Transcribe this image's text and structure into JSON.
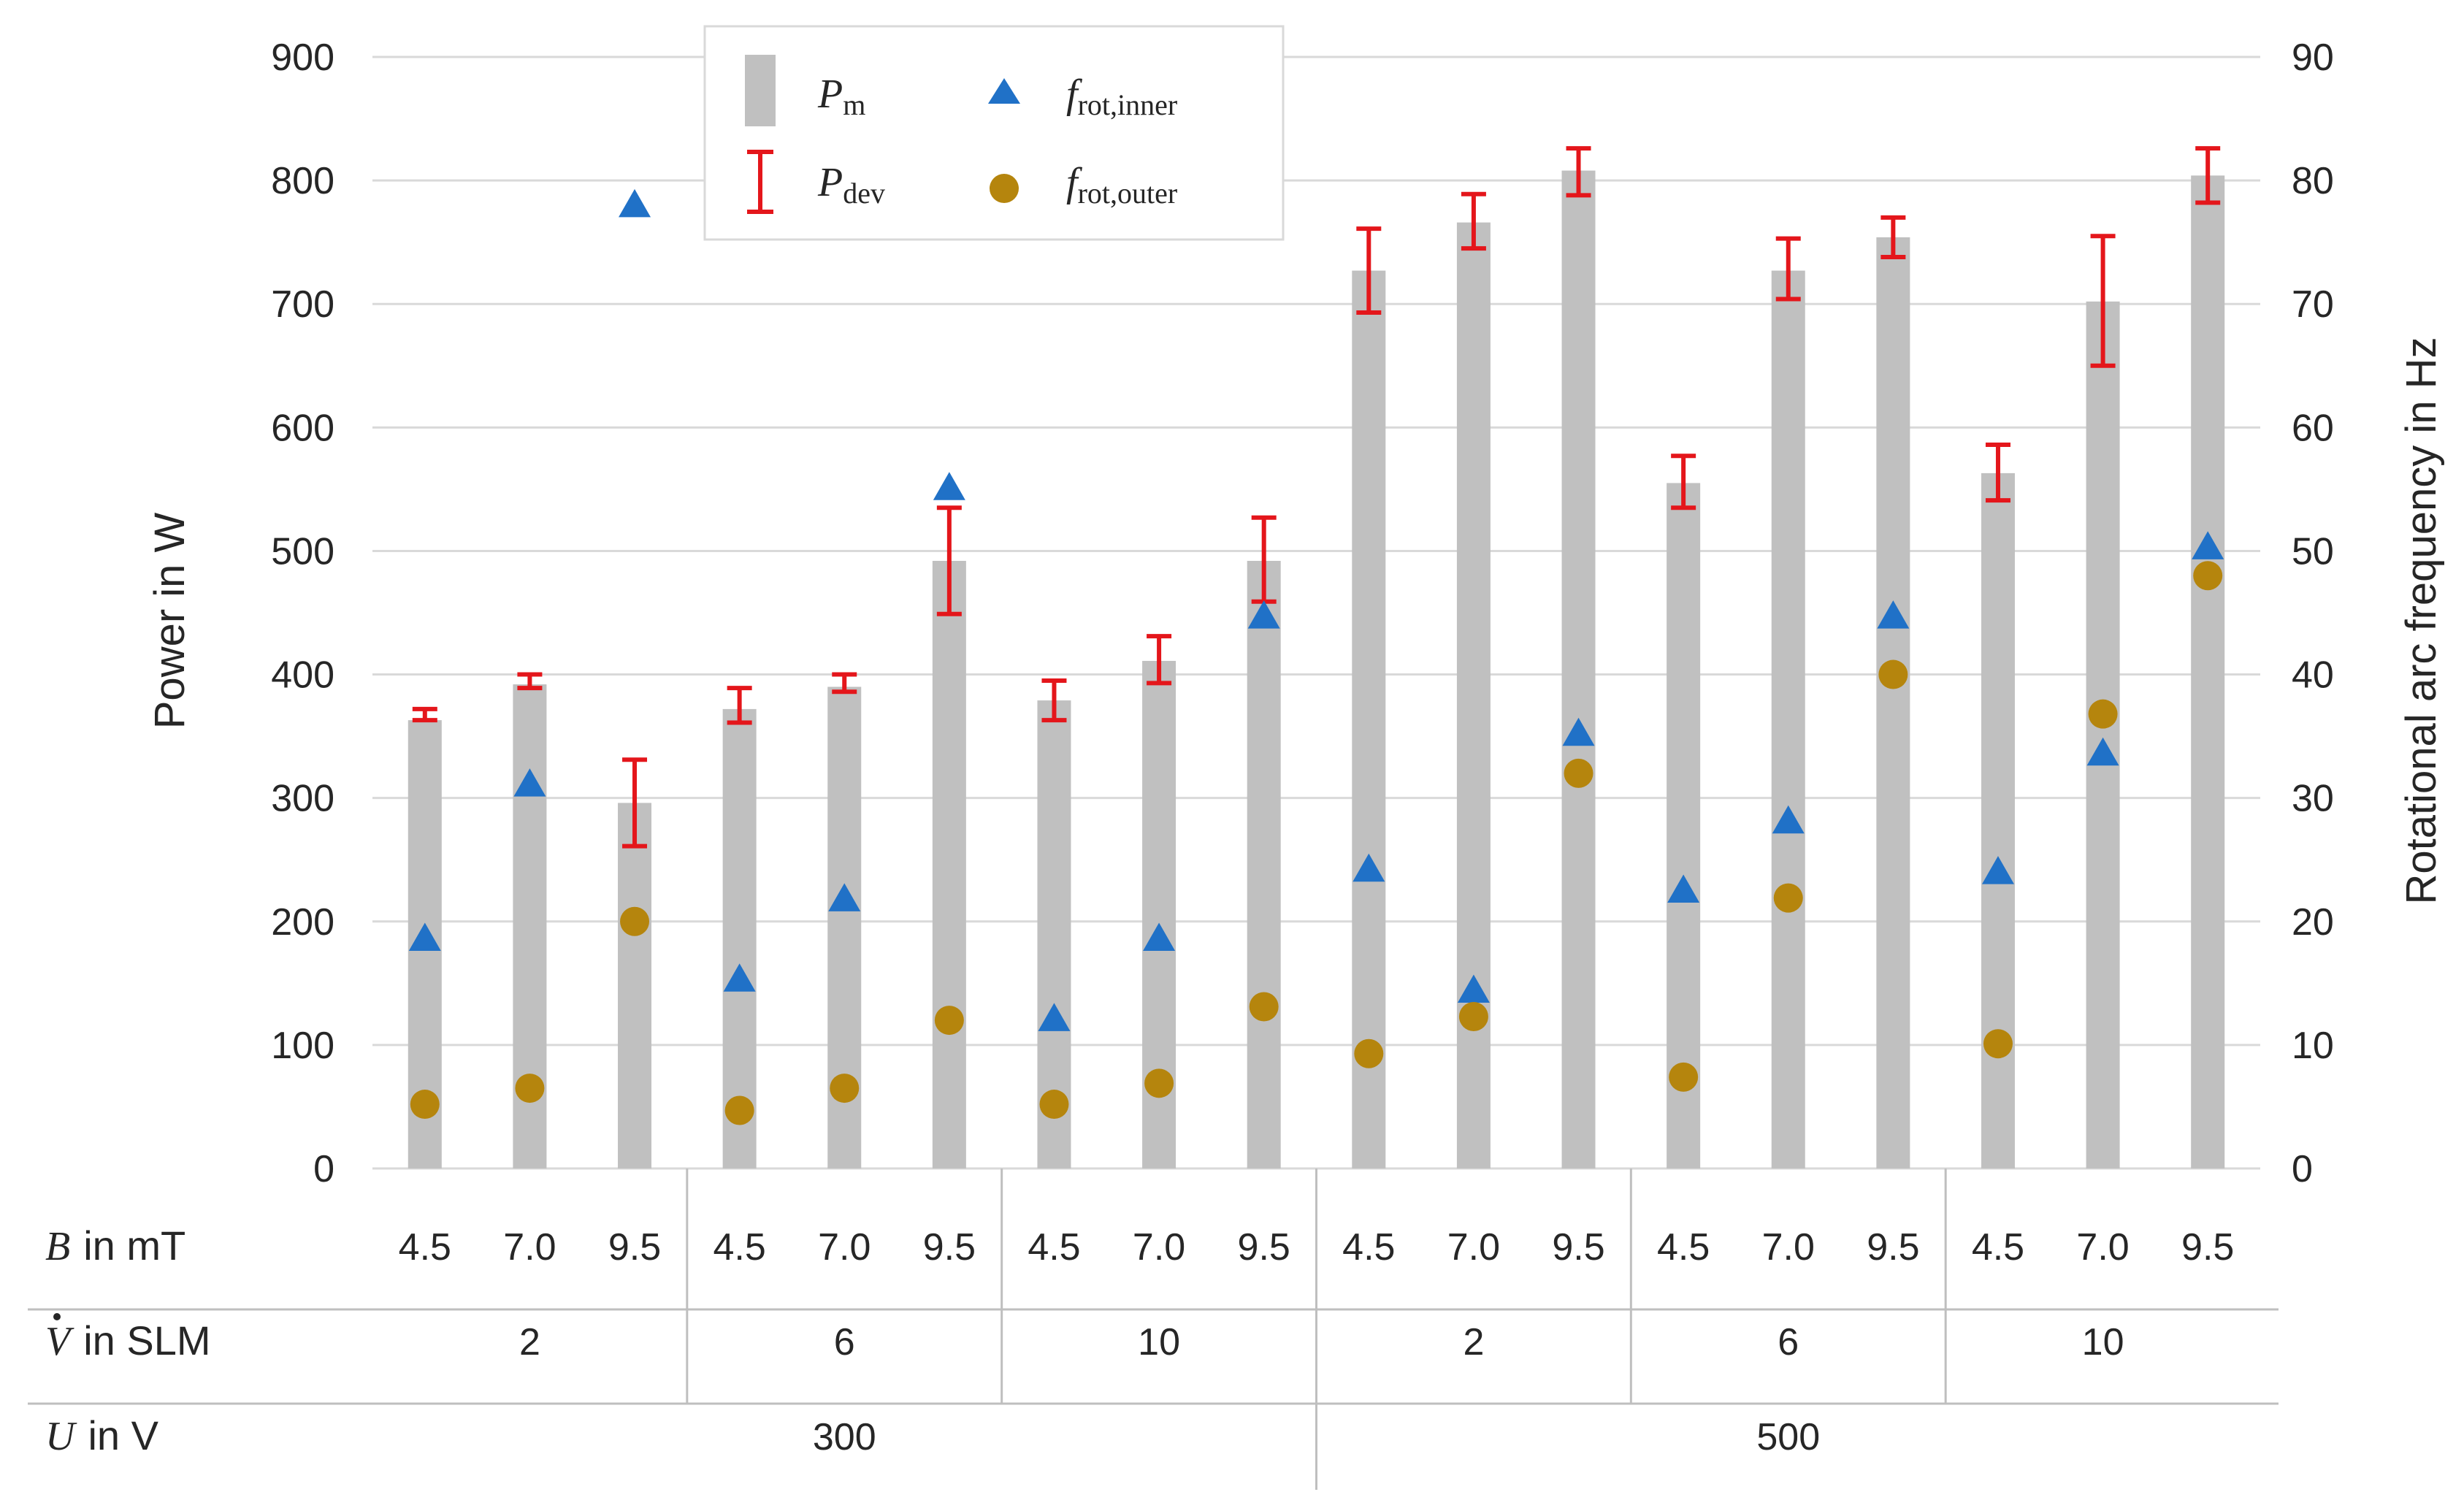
{
  "chart_data": {
    "type": "bar",
    "title": "",
    "ylabel": "Power in W",
    "y2label": "Rotational arc frequency in Hz",
    "ylim": [
      0,
      900
    ],
    "y2lim": [
      0,
      90
    ],
    "yticks": [
      "0",
      "100",
      "200",
      "300",
      "400",
      "500",
      "600",
      "700",
      "800",
      "900"
    ],
    "y2ticks": [
      "0",
      "10",
      "20",
      "30",
      "40",
      "50",
      "60",
      "70",
      "80",
      "90"
    ],
    "gridlines": true,
    "legend_position": "top-center",
    "legend": {
      "pm": {
        "main": "P",
        "sub": "m"
      },
      "pdev": {
        "main": "P",
        "sub": "dev"
      },
      "finner": {
        "main": "f",
        "sub": "rot,inner"
      },
      "fouter": {
        "main": "f",
        "sub": "rot,outer"
      }
    },
    "categories": [
      "4.5",
      "7.0",
      "9.5",
      "4.5",
      "7.0",
      "9.5",
      "4.5",
      "7.0",
      "9.5",
      "4.5",
      "7.0",
      "9.5",
      "4.5",
      "7.0",
      "9.5",
      "4.5",
      "7.0",
      "9.5"
    ],
    "series": [
      {
        "name": "P_m",
        "axis": "left",
        "kind": "bar",
        "values": [
          363,
          392,
          296,
          372,
          390,
          492,
          379,
          411,
          492,
          727,
          766,
          808,
          555,
          727,
          754,
          563,
          702,
          804
        ]
      },
      {
        "name": "P_dev_upper",
        "axis": "left",
        "kind": "errorbar",
        "values": [
          372,
          400,
          331,
          389,
          400,
          535,
          395,
          431,
          527,
          761,
          789,
          826,
          577,
          753,
          770,
          586,
          755,
          826
        ]
      },
      {
        "name": "P_dev_lower",
        "axis": "left",
        "kind": "errorbar",
        "values": [
          363,
          389,
          261,
          361,
          386,
          449,
          363,
          393,
          459,
          693,
          745,
          788,
          535,
          704,
          738,
          541,
          650,
          782
        ]
      },
      {
        "name": "f_rot,inner",
        "axis": "right",
        "kind": "triangle",
        "values": [
          18.6,
          31.1,
          78.0,
          15.3,
          21.8,
          55.1,
          12.1,
          18.6,
          44.7,
          24.2,
          14.4,
          35.2,
          22.5,
          28.1,
          44.7,
          24.0,
          33.6,
          50.3
        ]
      },
      {
        "name": "f_rot,outer",
        "axis": "right",
        "kind": "circle",
        "values": [
          5.2,
          6.5,
          20.0,
          4.7,
          6.5,
          12.0,
          5.2,
          6.9,
          13.1,
          9.3,
          12.3,
          32.0,
          7.4,
          21.9,
          40.0,
          10.1,
          36.8,
          48.0
        ]
      }
    ],
    "table": {
      "rows": [
        {
          "symbol": "B",
          "unit": "in mT",
          "cells": [
            "4.5",
            "7.0",
            "9.5",
            "4.5",
            "7.0",
            "9.5",
            "4.5",
            "7.0",
            "9.5",
            "4.5",
            "7.0",
            "9.5",
            "4.5",
            "7.0",
            "9.5",
            "4.5",
            "7.0",
            "9.5"
          ]
        },
        {
          "symbol": "V",
          "dot": true,
          "unit": "in SLM",
          "cells": [
            "2",
            "6",
            "10",
            "2",
            "6",
            "10"
          ]
        },
        {
          "symbol": "U",
          "unit": "in V",
          "cells": [
            "300",
            "500"
          ]
        }
      ]
    },
    "colors": {
      "bar": "#c0c0c0",
      "errorbar": "#e4161b",
      "inner": "#2071c7",
      "outer": "#b5850d",
      "grid": "#d9d9d9",
      "text": "#262626"
    }
  }
}
